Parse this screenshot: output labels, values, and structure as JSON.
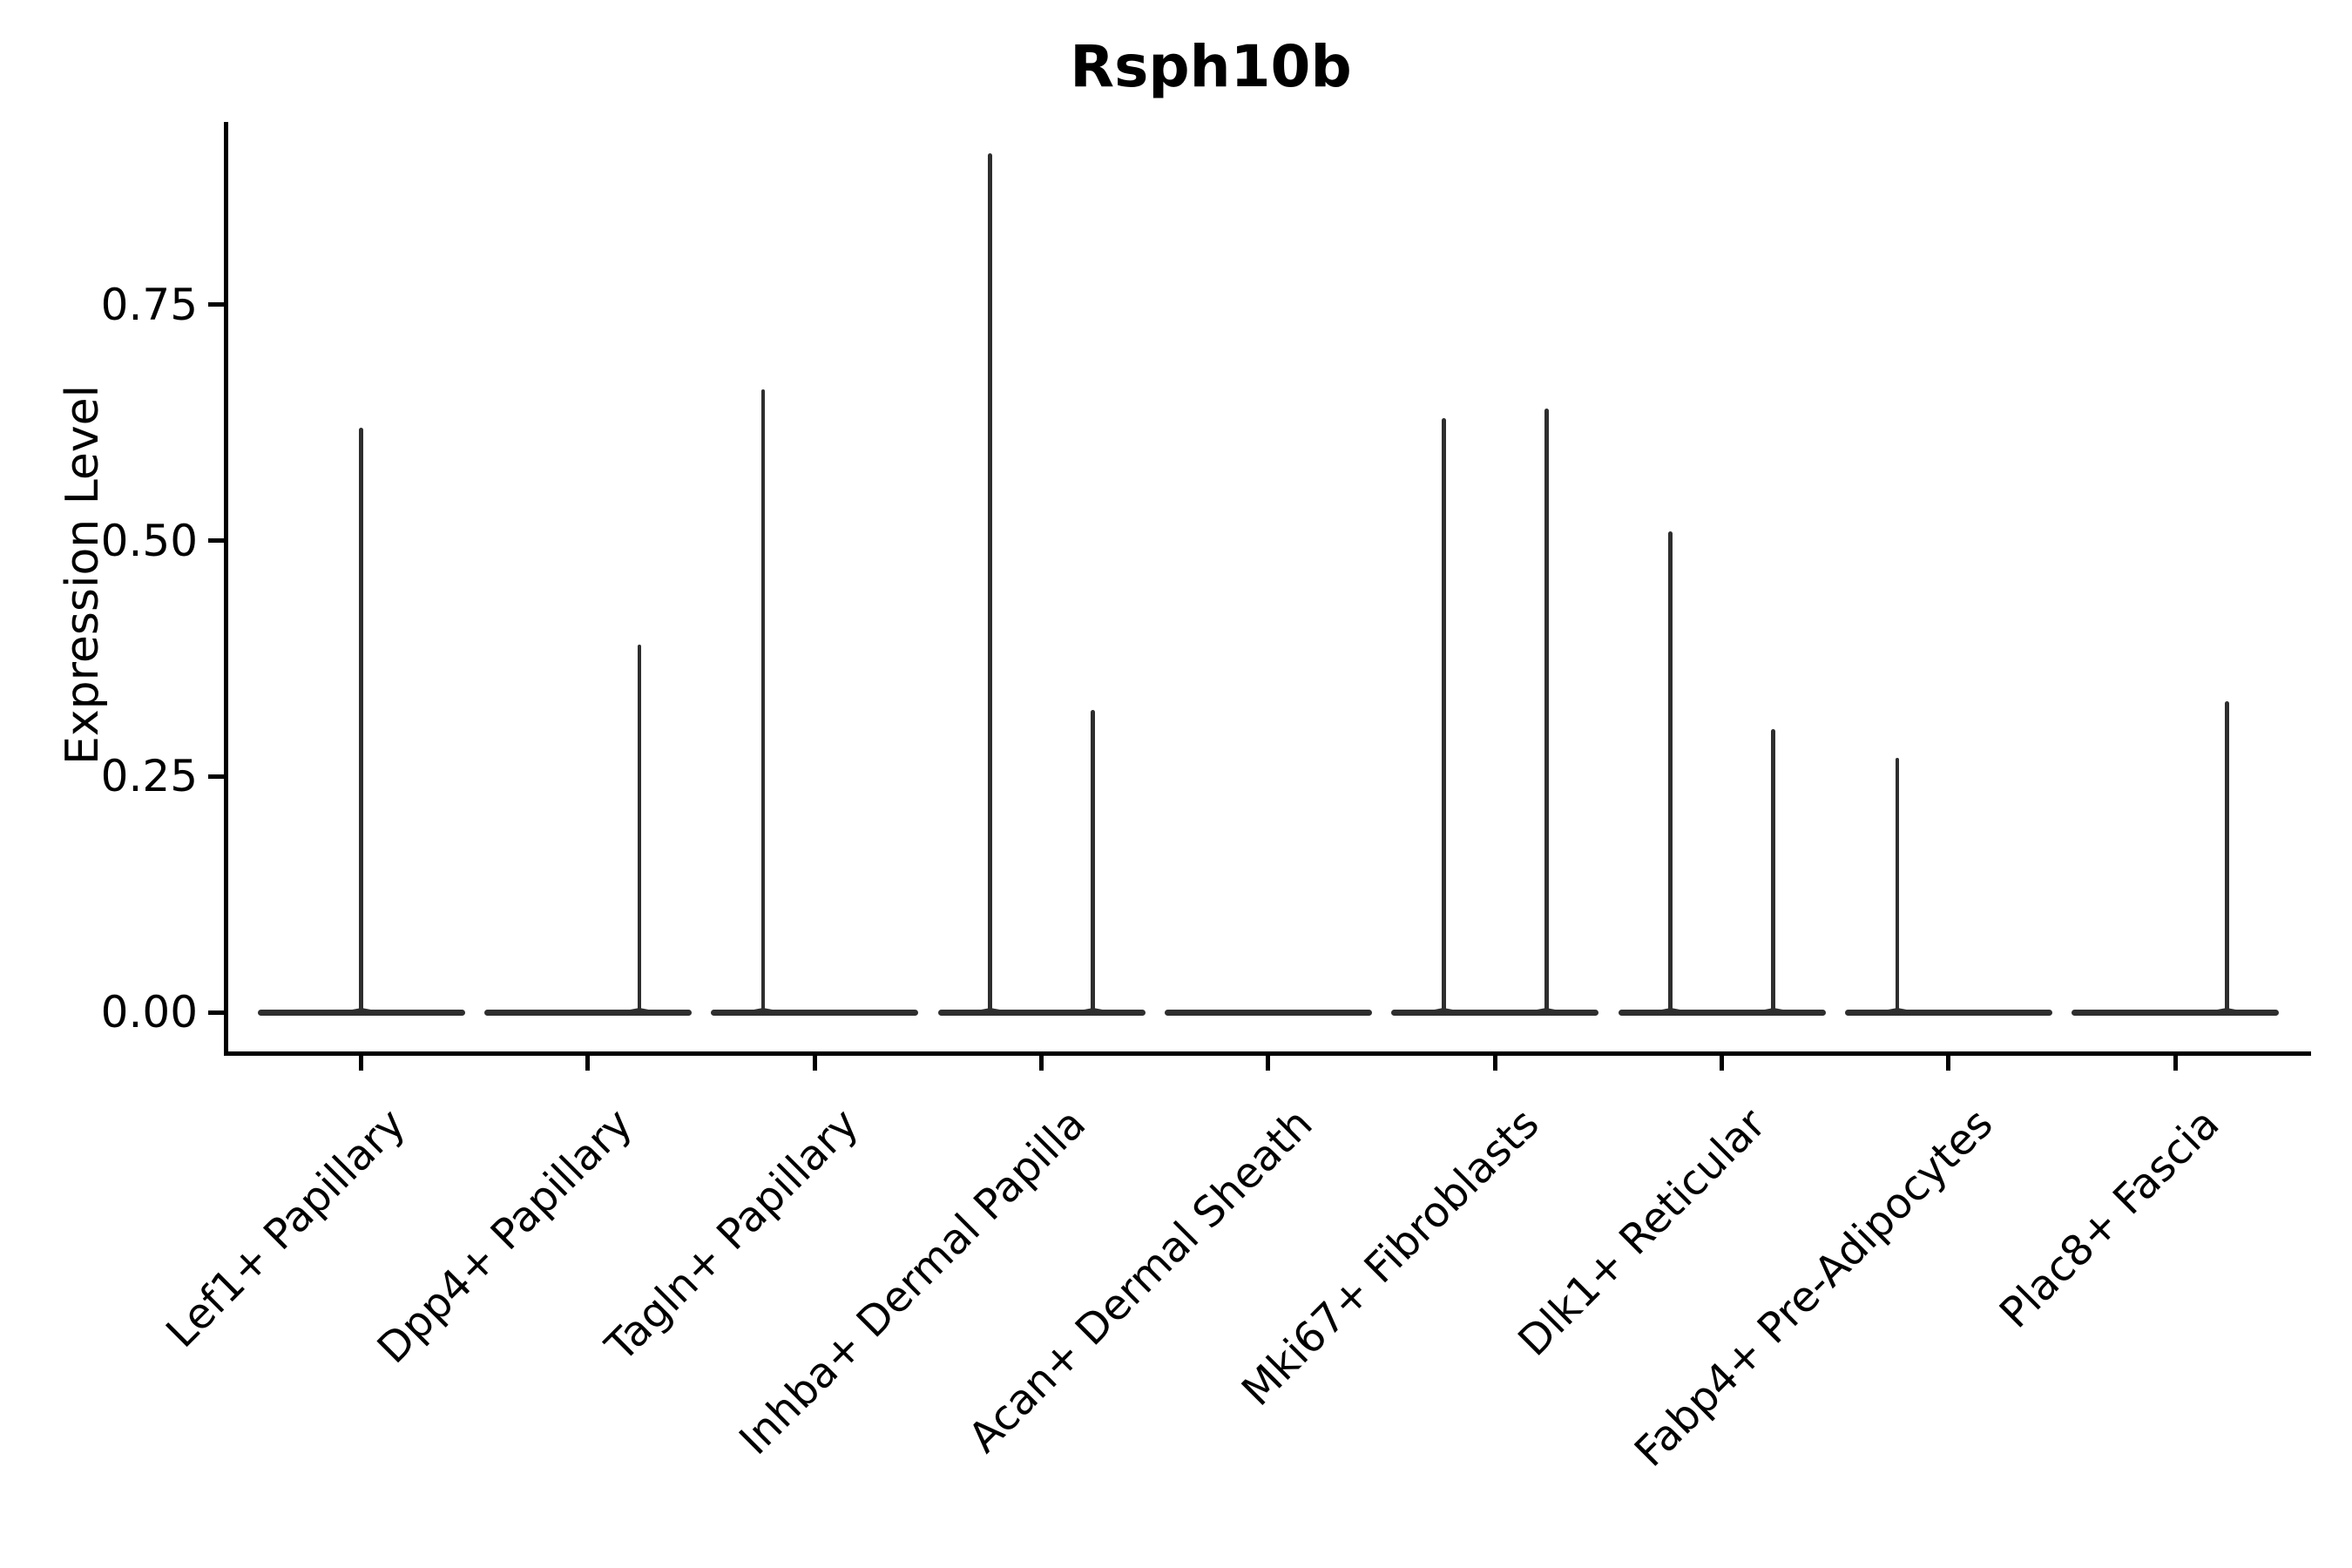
{
  "chart_data": {
    "type": "violin",
    "title": "Rsph10b",
    "ylabel": "Expression Level",
    "xlabel": "",
    "ylim": [
      -0.043,
      0.944
    ],
    "yticks": [
      "0.00",
      "0.25",
      "0.50",
      "0.75"
    ],
    "grid": false,
    "legend": "none",
    "background_color": "#ffffff",
    "axis_color": "#000000",
    "violin_stroke_color": "#2e2e2e",
    "categories": [
      "Lef1+ Papillary",
      "Dpp4+ Papillary",
      "Tagln+ Papillary",
      "Inhba+ Dermal Papilla",
      "Acan+ Dermal Sheath",
      "Mki67+ Fibroblasts",
      "Dlk1+ Reticular",
      "Fabp4+ Pre-Adipocytes",
      "Plac8+ Fascia"
    ],
    "violins": [
      {
        "category": "Lef1+ Papillary",
        "baseline_value": 0.0,
        "spikes": [
          {
            "pos": "center",
            "max": 0.62
          }
        ]
      },
      {
        "category": "Dpp4+ Papillary",
        "baseline_value": 0.0,
        "spikes": [
          {
            "pos": "right",
            "max": 0.39
          }
        ]
      },
      {
        "category": "Tagln+ Papillary",
        "baseline_value": 0.0,
        "spikes": [
          {
            "pos": "left",
            "max": 0.66
          }
        ]
      },
      {
        "category": "Inhba+ Dermal Papilla",
        "baseline_value": 0.0,
        "spikes": [
          {
            "pos": "left",
            "max": 0.91
          },
          {
            "pos": "right",
            "max": 0.32
          }
        ]
      },
      {
        "category": "Acan+ Dermal Sheath",
        "baseline_value": 0.0,
        "spikes": []
      },
      {
        "category": "Mki67+ Fibroblasts",
        "baseline_value": 0.0,
        "spikes": [
          {
            "pos": "left",
            "max": 0.63
          },
          {
            "pos": "right",
            "max": 0.64
          }
        ]
      },
      {
        "category": "Dlk1+ Reticular",
        "baseline_value": 0.0,
        "spikes": [
          {
            "pos": "left",
            "max": 0.51
          },
          {
            "pos": "right",
            "max": 0.3
          }
        ]
      },
      {
        "category": "Fabp4+ Pre-Adipocytes",
        "baseline_value": 0.0,
        "spikes": [
          {
            "pos": "left",
            "max": 0.27
          }
        ]
      },
      {
        "category": "Plac8+ Fascia",
        "baseline_value": 0.0,
        "spikes": [
          {
            "pos": "right",
            "max": 0.33
          }
        ]
      }
    ]
  }
}
